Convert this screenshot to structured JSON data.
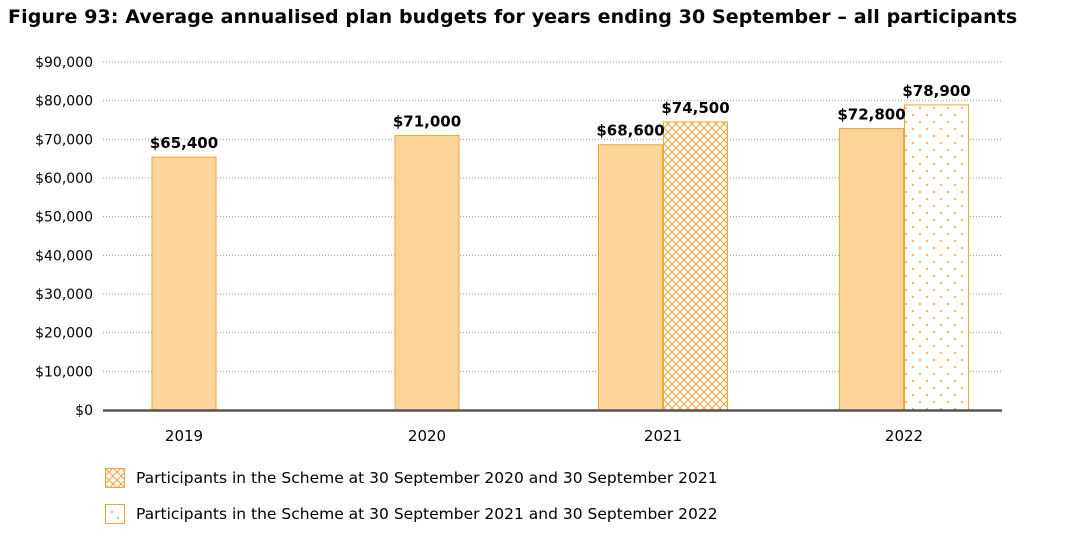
{
  "title": "Figure 93: Average annualised plan budgets for years ending 30 September – all participants",
  "colors": {
    "bar_fill": "#FDD49A",
    "bar_stroke": "#F2A33A",
    "pattern": "#F2A33A",
    "grid": "#999999",
    "axis": "#555555"
  },
  "chart_data": {
    "type": "bar",
    "categories": [
      "2019",
      "2020",
      "2021",
      "2022"
    ],
    "series": [
      {
        "values": [
          65400,
          71000,
          68600,
          72800
        ],
        "labels": [
          "$65,400",
          "$71,000",
          "$68,600",
          "$72,800"
        ],
        "fill": "solid"
      },
      {
        "name": "Participants in the Scheme at 30 September 2020 and 30 September 2021",
        "values": [
          null,
          null,
          74500,
          null
        ],
        "labels": [
          null,
          null,
          "$74,500",
          null
        ],
        "fill": "crosshatch"
      },
      {
        "name": "Participants in the Scheme at 30 September 2021 and 30 September 2022",
        "values": [
          null,
          null,
          null,
          78900
        ],
        "labels": [
          null,
          null,
          null,
          "$78,900"
        ],
        "fill": "dots"
      }
    ],
    "yticks": [
      "$0",
      "$10,000",
      "$20,000",
      "$30,000",
      "$40,000",
      "$50,000",
      "$60,000",
      "$70,000",
      "$80,000",
      "$90,000"
    ],
    "ylim": [
      0,
      90000
    ],
    "grid": "dotted horizontal",
    "legend_placement": "bottom-left"
  }
}
